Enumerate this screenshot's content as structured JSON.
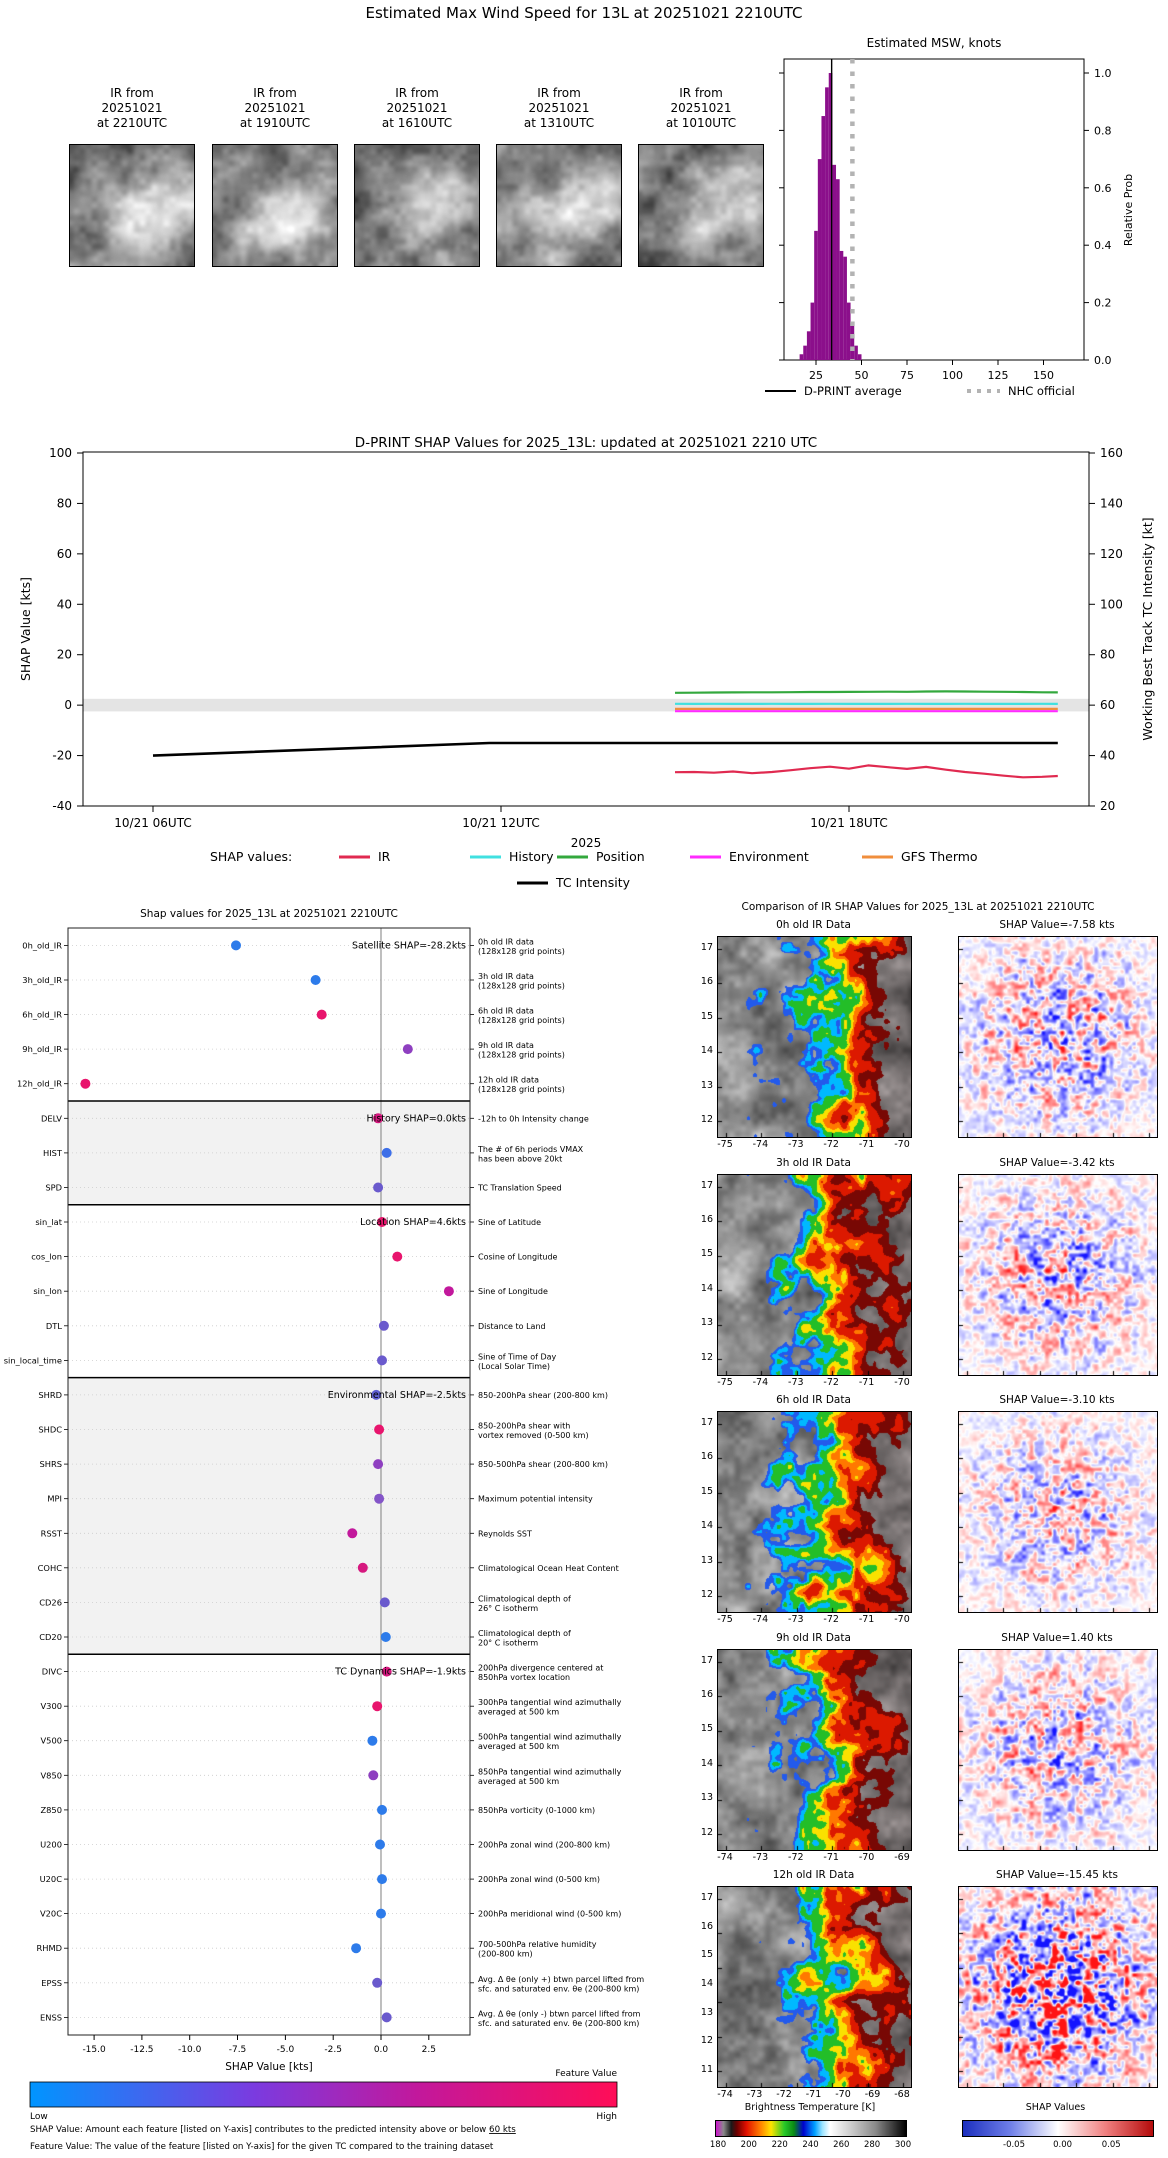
{
  "header": {
    "title": "Estimated Max Wind Speed for 13L at 20251021 2210UTC"
  },
  "thumbnails": {
    "items": [
      {
        "caption": "IR from\n20251021\nat 2210UTC"
      },
      {
        "caption": "IR from\n20251021\nat 1910UTC"
      },
      {
        "caption": "IR from\n20251021\nat 1610UTC"
      },
      {
        "caption": "IR from\n20251021\nat 1310UTC"
      },
      {
        "caption": "IR from\n20251021\nat 1010UTC"
      }
    ]
  },
  "chart_data": [
    {
      "id": "msw_histogram",
      "type": "bar",
      "title": "Estimated MSW, knots",
      "ylabel": "Relative Prob",
      "xticks": [
        25,
        50,
        75,
        100,
        125,
        150
      ],
      "ytick_labels": [
        "0.0",
        "0.2",
        "0.4",
        "0.6",
        "0.8",
        "1.0"
      ],
      "xlim": [
        7,
        172
      ],
      "ylim": [
        0,
        1.05
      ],
      "bar_color": "#8B0F8B",
      "bin_width": 2,
      "bars": [
        [
          17,
          0.02
        ],
        [
          19,
          0.05
        ],
        [
          21,
          0.1
        ],
        [
          23,
          0.2
        ],
        [
          25,
          0.45
        ],
        [
          27,
          0.7
        ],
        [
          29,
          0.85
        ],
        [
          31,
          0.95
        ],
        [
          33,
          1.0
        ],
        [
          35,
          0.68
        ],
        [
          37,
          0.63
        ],
        [
          39,
          0.38
        ],
        [
          41,
          0.36
        ],
        [
          43,
          0.2
        ],
        [
          45,
          0.13
        ],
        [
          47,
          0.05
        ],
        [
          49,
          0.02
        ]
      ],
      "dprint_average_kt": 33.6,
      "nhc_official_kt": 45,
      "legend": [
        {
          "label": "D-PRINT average",
          "color": "#000000",
          "style": "solid"
        },
        {
          "label": "NHC official",
          "color": "#b3b3b3",
          "style": "dotted"
        }
      ]
    },
    {
      "id": "shap_timeseries",
      "type": "line",
      "title": "D-PRINT SHAP Values for 2025_13L: updated at 20251021 2210 UTC",
      "ylabel_left": "SHAP Value [kts]",
      "ylabel_right": "Working Best Track TC Intensity [kt]",
      "xlabel": "2025",
      "ylim_left": [
        -40,
        100
      ],
      "ylim_right": [
        20,
        160
      ],
      "yticks_left": [
        -40,
        -20,
        0,
        20,
        40,
        60,
        80,
        100
      ],
      "yticks_right": [
        20,
        40,
        60,
        80,
        100,
        120,
        140,
        160
      ],
      "xticks": [
        {
          "t": 6,
          "label": "10/21 06UTC"
        },
        {
          "t": 12,
          "label": "10/21 12UTC"
        },
        {
          "t": 18,
          "label": "10/21 18UTC"
        }
      ],
      "xlim_hours": [
        4.79,
        22.14
      ],
      "zero_band": [
        -2.5,
        2.5
      ],
      "legend_prefix": "SHAP values:",
      "t": [
        15.0,
        15.33,
        15.67,
        16.0,
        16.33,
        16.67,
        17.0,
        17.33,
        17.67,
        18.0,
        18.33,
        18.67,
        19.0,
        19.33,
        19.67,
        20.0,
        20.33,
        20.67,
        21.0,
        21.33,
        21.6
      ],
      "series": [
        {
          "name": "IR",
          "color": "#E02A50",
          "y": [
            -26.6,
            -26.5,
            -26.8,
            -26.3,
            -27.0,
            -26.5,
            -25.8,
            -25.0,
            -24.4,
            -25.2,
            -23.9,
            -24.6,
            -25.3,
            -24.5,
            -25.6,
            -26.5,
            -27.2,
            -28.0,
            -28.6,
            -28.4,
            -28.1
          ]
        },
        {
          "name": "History",
          "color": "#40E0E0",
          "y": [
            0.55,
            0.5,
            0.55,
            0.5,
            0.5,
            0.55,
            0.5,
            0.5,
            0.55,
            0.5,
            0.5,
            0.5,
            0.55,
            0.5,
            0.5,
            0.55,
            0.5,
            0.5,
            0.5,
            0.55,
            0.5
          ]
        },
        {
          "name": "Position",
          "color": "#33A83D",
          "y": [
            4.9,
            4.95,
            5.0,
            5.05,
            5.1,
            5.1,
            5.15,
            5.2,
            5.2,
            5.25,
            5.3,
            5.35,
            5.3,
            5.4,
            5.45,
            5.4,
            5.35,
            5.3,
            5.2,
            5.1,
            5.05
          ]
        },
        {
          "name": "Environment",
          "color": "#FF2BFF",
          "y": [
            -2.4,
            -2.4,
            -2.4,
            -2.4,
            -2.4,
            -2.4,
            -2.4,
            -2.4,
            -2.4,
            -2.4,
            -2.4,
            -2.4,
            -2.4,
            -2.4,
            -2.4,
            -2.4,
            -2.4,
            -2.4,
            -2.4,
            -2.4,
            -2.4
          ]
        },
        {
          "name": "GFS Thermo",
          "color": "#F08E3C",
          "y": [
            -1.5,
            -1.5,
            -1.5,
            -1.5,
            -1.5,
            -1.5,
            -1.5,
            -1.5,
            -1.5,
            -1.5,
            -1.5,
            -1.5,
            -1.5,
            -1.5,
            -1.5,
            -1.5,
            -1.5,
            -1.5,
            -1.5,
            -1.5,
            -1.5
          ]
        }
      ],
      "tc_intensity": {
        "name": "TC Intensity",
        "color": "#000000",
        "axis": "right",
        "x": [
          6,
          11.8,
          21.6
        ],
        "y": [
          40,
          45,
          45
        ]
      }
    },
    {
      "id": "shap_dot_plot",
      "type": "scatter",
      "title": "Shap values for 2025_13L at 20251021 2210UTC",
      "xlabel": "SHAP Value [kts]",
      "xticks": [
        -15,
        -12.5,
        -10,
        -7.5,
        -5,
        -2.5,
        0,
        2.5
      ],
      "xtick_labels": [
        "-15.0",
        "-12.5",
        "-10.0",
        "-7.5",
        "-5.0",
        "-2.5",
        "0.0",
        "2.5"
      ],
      "xlim": [
        -16.35,
        4.65
      ],
      "sections": [
        {
          "label": "Satellite SHAP=-28.2kts",
          "start": 0,
          "end": 4,
          "shaded": false
        },
        {
          "label": "History SHAP=0.0kts",
          "start": 5,
          "end": 7,
          "shaded": true
        },
        {
          "label": "Location SHAP=4.6kts",
          "start": 8,
          "end": 12,
          "shaded": false
        },
        {
          "label": "Environmental SHAP=-2.5kts",
          "start": 13,
          "end": 20,
          "shaded": true
        },
        {
          "label": "TC Dynamics SHAP=-1.9kts",
          "start": 21,
          "end": 31,
          "shaded": false
        }
      ],
      "features": [
        {
          "key": "0h_old_IR",
          "value": -7.58,
          "color": "#2D7BEA",
          "desc": "0h old IR data\n(128x128 grid points)"
        },
        {
          "key": "3h_old_IR",
          "value": -3.42,
          "color": "#2D7BEA",
          "desc": "3h old IR data\n(128x128 grid points)"
        },
        {
          "key": "6h_old_IR",
          "value": -3.1,
          "color": "#E8156D",
          "desc": "6h old IR data\n(128x128 grid points)"
        },
        {
          "key": "9h_old_IR",
          "value": 1.4,
          "color": "#8E3FC0",
          "desc": "9h old IR data\n(128x128 grid points)"
        },
        {
          "key": "12h_old_IR",
          "value": -15.45,
          "color": "#E8156D",
          "desc": "12h old IR data\n(128x128 grid points)"
        },
        {
          "key": "DELV",
          "value": -0.15,
          "color": "#D6187F",
          "desc": "-12h to 0h Intensity change"
        },
        {
          "key": "HIST",
          "value": 0.3,
          "color": "#3D6FE8",
          "desc": "The # of 6h peri­ods VMAX\nhas been above 20kt"
        },
        {
          "key": "SPD",
          "value": -0.15,
          "color": "#6A5ACD",
          "desc": "TC Translation Speed"
        },
        {
          "key": "sin_lat",
          "value": 0.05,
          "color": "#E8156D",
          "desc": "Sine of Latitude"
        },
        {
          "key": "cos_lon",
          "value": 0.85,
          "color": "#E8156D",
          "desc": "Cosine of Longitude"
        },
        {
          "key": "sin_lon",
          "value": 3.55,
          "color": "#C2189C",
          "desc": "Sine of Longitude"
        },
        {
          "key": "DTL",
          "value": 0.15,
          "color": "#6A5ACD",
          "desc": "Distance to Land"
        },
        {
          "key": "sin_local_time",
          "value": 0.05,
          "color": "#6A5ACD",
          "desc": "Sine of Time of Day\n(Local Solar Time)"
        },
        {
          "key": "SHRD",
          "value": -0.25,
          "color": "#5F5FD3",
          "desc": "850-200hPa shear (200-800 km)"
        },
        {
          "key": "SHDC",
          "value": -0.1,
          "color": "#E8156D",
          "desc": "850-200hPa shear with\nvortex removed (0-500 km)"
        },
        {
          "key": "SHRS",
          "value": -0.15,
          "color": "#8E3FC0",
          "desc": "850-500hPa shear (200-800 km)"
        },
        {
          "key": "MPI",
          "value": -0.1,
          "color": "#8455C8",
          "desc": "Maximum potential intensity"
        },
        {
          "key": "RSST",
          "value": -1.5,
          "color": "#C2189C",
          "desc": "Reynolds SST"
        },
        {
          "key": "COHC",
          "value": -0.95,
          "color": "#D6187F",
          "desc": "Climatological Ocean Heat Content"
        },
        {
          "key": "CD26",
          "value": 0.2,
          "color": "#6A5ACD",
          "desc": "Climatological depth of\n26° C isotherm"
        },
        {
          "key": "CD20",
          "value": 0.25,
          "color": "#2D7BEA",
          "desc": "Climatological depth of\n20° C isotherm"
        },
        {
          "key": "DIVC",
          "value": 0.3,
          "color": "#D6187F",
          "desc": "200hPa divergence centered at\n850hPa vortex location"
        },
        {
          "key": "V300",
          "value": -0.2,
          "color": "#E8156D",
          "desc": "300hPa tangential wind azimuthally\naveraged at 500 km"
        },
        {
          "key": "V500",
          "value": -0.45,
          "color": "#2D7BEA",
          "desc": "500hPa tangential wind azimuthally\naveraged at 500 km"
        },
        {
          "key": "V850",
          "value": -0.4,
          "color": "#8E3FC0",
          "desc": "850hPa tangential wind azimuthally\naveraged at 500 km"
        },
        {
          "key": "Z850",
          "value": 0.05,
          "color": "#2D7BEA",
          "desc": "850hPa vorticity (0-1000 km)"
        },
        {
          "key": "U200",
          "value": -0.05,
          "color": "#2D7BEA",
          "desc": "200hPa zonal wind (200-800 km)"
        },
        {
          "key": "U20C",
          "value": 0.05,
          "color": "#2D7BEA",
          "desc": "200hPa zonal wind (0-500 km)"
        },
        {
          "key": "V20C",
          "value": 0.0,
          "color": "#2D7BEA",
          "desc": "200hPa meridional wind (0-500 km)"
        },
        {
          "key": "RHMD",
          "value": -1.3,
          "color": "#2D7BEA",
          "desc": "700-500hPa relative humidity\n(200-800 km)"
        },
        {
          "key": "EPSS",
          "value": -0.2,
          "color": "#6A5ACD",
          "desc": "Avg. Δ θe (only +) btwn parcel lifted from\nsfc. and saturated env. θe (200-800 km)"
        },
        {
          "key": "ENSS",
          "value": 0.3,
          "color": "#6A5ACD",
          "desc": "Avg. Δ θe (only -) btwn parcel lifted from\nsfc. and saturated env. θe (200-800 km)"
        }
      ],
      "colorbar": {
        "title": "Feature Value",
        "low_label": "Low",
        "high_label": "High",
        "gradient": [
          "#0095FF",
          "#7A3BE0",
          "#C2189C",
          "#FF0D57"
        ]
      },
      "footnotes": [
        {
          "text": "SHAP Value: Amount each feature [listed on Y-axis] contributes to the predicted intensity above or below 60 kts",
          "underline": "60 kts"
        },
        {
          "text": "Feature Value: The value of the feature [listed on Y-axis] for the given TC compared to the training dataset",
          "underline": ""
        }
      ]
    },
    {
      "id": "ir_comparison",
      "type": "heatmap",
      "title": "Comparison of IR SHAP Values for 2025_13L at 20251021 2210UTC",
      "rows": [
        {
          "ir_title": "0h old IR Data",
          "shap_title": "SHAP Value=-7.58 kts",
          "shap_kts": -7.58,
          "yticks": [
            17,
            16,
            15,
            14,
            13,
            12
          ],
          "xticks": [
            -75,
            -74,
            -73,
            -72,
            -71,
            -70
          ],
          "noise_intensity": 0.55
        },
        {
          "ir_title": "3h old IR Data",
          "shap_title": "SHAP Value=-3.42 kts",
          "shap_kts": -3.42,
          "yticks": [
            17,
            16,
            15,
            14,
            13,
            12
          ],
          "xticks": [
            -75,
            -74,
            -73,
            -72,
            -71,
            -70
          ],
          "noise_intensity": 0.5
        },
        {
          "ir_title": "6h old IR Data",
          "shap_title": "SHAP Value=-3.10 kts",
          "shap_kts": -3.1,
          "yticks": [
            17,
            16,
            15,
            14,
            13,
            12
          ],
          "xticks": [
            -75,
            -74,
            -73,
            -72,
            -71,
            -70
          ],
          "noise_intensity": 0.45
        },
        {
          "ir_title": "9h old IR Data",
          "shap_title": "SHAP Value=1.40 kts",
          "shap_kts": 1.4,
          "yticks": [
            17,
            16,
            15,
            14,
            13,
            12
          ],
          "xticks": [
            -74,
            -73,
            -72,
            -71,
            -70,
            -69
          ],
          "noise_intensity": 0.5
        },
        {
          "ir_title": "12h old IR Data",
          "shap_title": "SHAP Value=-15.45 kts",
          "shap_kts": -15.45,
          "yticks": [
            17,
            16,
            15,
            14,
            13,
            12,
            11
          ],
          "xticks": [
            -74,
            -73,
            -72,
            -71,
            -70,
            -69,
            -68
          ],
          "noise_intensity": 0.95
        }
      ],
      "colorbars": [
        {
          "label": "Brightness Temperature [K]",
          "ticks": [
            "180",
            "200",
            "220",
            "240",
            "260",
            "280",
            "300"
          ]
        },
        {
          "label": "SHAP Values",
          "ticks": [
            "-0.05",
            "0.00",
            "0.05"
          ]
        }
      ]
    }
  ]
}
